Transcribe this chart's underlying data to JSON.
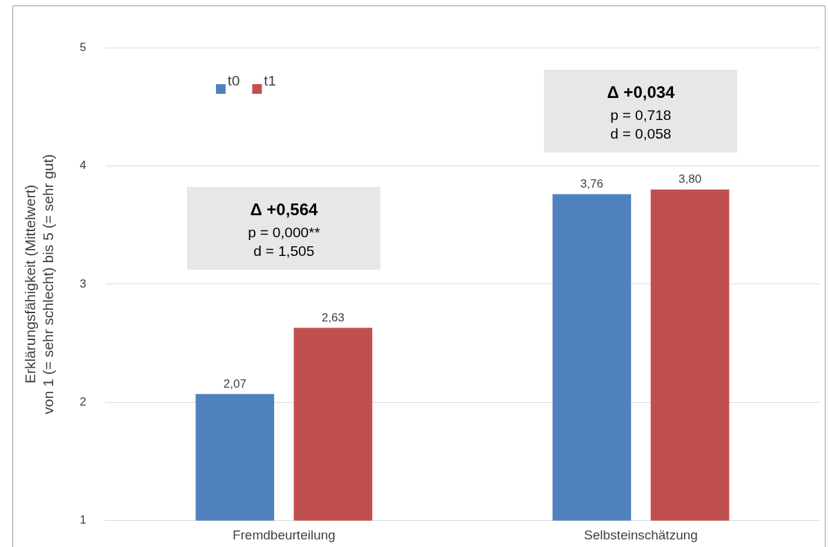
{
  "chart_data": {
    "type": "bar",
    "ylabel": "Erklärungsfähigkeit (Mittelwert)\nvon 1 (= sehr schlecht) bis 5 (= sehr gut)",
    "categories": [
      "Fremdbeurteilung",
      "Selbsteinschätzung"
    ],
    "series": [
      {
        "name": "t0",
        "color": "#4f81bd",
        "values": [
          2.07,
          3.76
        ],
        "value_labels": [
          "2,07",
          "3,76"
        ]
      },
      {
        "name": "t1",
        "color": "#c0504d",
        "values": [
          2.63,
          3.8
        ],
        "value_labels": [
          "2,63",
          "3,80"
        ]
      }
    ],
    "ylim": [
      1,
      5
    ],
    "yticks": [
      1,
      2,
      3,
      4,
      5
    ],
    "grid": "y",
    "legend": "top left",
    "annotations": [
      "Δ +0,564\np = 0,000**\nd = 1,505",
      "Δ +0,034\np = 0,718\nd = 0,058"
    ]
  }
}
